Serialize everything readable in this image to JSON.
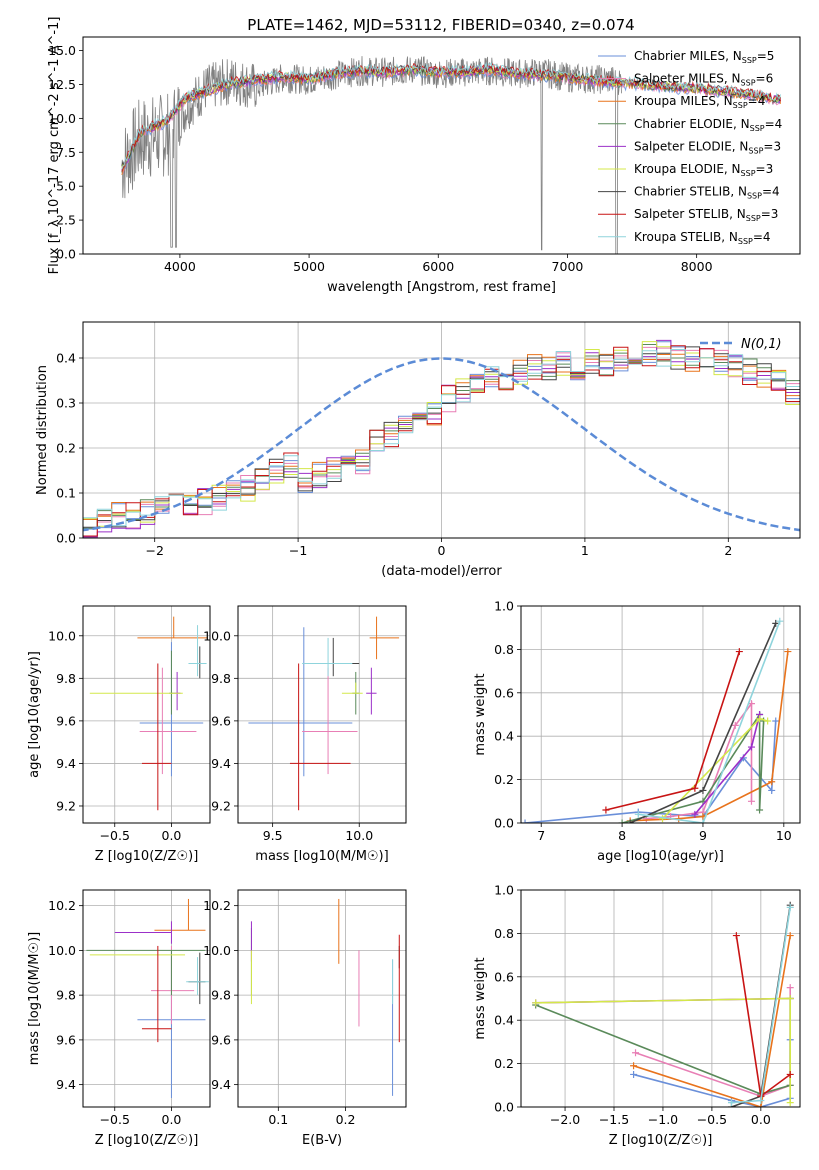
{
  "figure": {
    "title": "PLATE=1462, MJD=53112, FIBERID=0340, z=0.074"
  },
  "models": [
    {
      "name": "Chabrier MILES",
      "nssp": "5",
      "color": "#6a8fd9"
    },
    {
      "name": "Salpeter MILES",
      "nssp": "6",
      "color": "#e87fb5"
    },
    {
      "name": "Kroupa MILES",
      "nssp": "4",
      "color": "#e8731c"
    },
    {
      "name": "Chabrier ELODIE",
      "nssp": "4",
      "color": "#5a8a5a"
    },
    {
      "name": "Salpeter ELODIE",
      "nssp": "3",
      "color": "#9b30c8"
    },
    {
      "name": "Kroupa ELODIE",
      "nssp": "3",
      "color": "#d4e84a"
    },
    {
      "name": "Chabrier STELIB",
      "nssp": "4",
      "color": "#444444"
    },
    {
      "name": "Salpeter STELIB",
      "nssp": "3",
      "color": "#c81414"
    },
    {
      "name": "Kroupa STELIB",
      "nssp": "4",
      "color": "#8fd4dc"
    }
  ],
  "chart_data": [
    {
      "id": "spectrum",
      "type": "line",
      "xlabel": "wavelength [Angstrom, rest frame]",
      "ylabel": "Flux [f_λ 10^-17 erg cm^-2 s^-1 A^-1]",
      "xlim": [
        3250,
        8800
      ],
      "ylim": [
        0,
        16
      ],
      "xticks": [
        4000,
        5000,
        6000,
        7000,
        8000
      ],
      "yticks": [
        0.0,
        2.5,
        5.0,
        7.5,
        10.0,
        12.5,
        15.0
      ],
      "legend_position": "upper right",
      "observed": {
        "color": "#808080",
        "x": [
          3550,
          3700,
          3900,
          4050,
          4200,
          4400,
          4600,
          4800,
          5000,
          5200,
          5400,
          5600,
          5800,
          6000,
          6200,
          6400,
          6600,
          6800,
          7000,
          7200,
          7400
        ],
        "y": [
          6.5,
          8.5,
          8.8,
          10.8,
          12.2,
          12.8,
          12.3,
          13.0,
          12.8,
          13.2,
          13.5,
          13.4,
          13.6,
          13.3,
          13.4,
          13.5,
          13.3,
          13.4,
          13.0,
          12.9,
          12.8
        ]
      },
      "model_curve": {
        "x": [
          3550,
          3700,
          3900,
          4050,
          4200,
          4400,
          4600,
          4800,
          5000,
          5200,
          5400,
          5600,
          5800,
          6000,
          6200,
          6400,
          6600,
          6800,
          7000,
          7200,
          7400,
          7600,
          7800,
          8000,
          8200,
          8400,
          8600
        ],
        "y": [
          6.2,
          9.0,
          9.8,
          11.5,
          12.0,
          12.6,
          12.8,
          13.1,
          12.9,
          13.3,
          13.5,
          13.4,
          13.6,
          13.4,
          13.4,
          13.6,
          13.3,
          13.2,
          13.0,
          12.8,
          12.6,
          12.5,
          12.3,
          12.2,
          12.0,
          11.8,
          11.4
        ]
      }
    },
    {
      "id": "residual-histogram",
      "type": "line",
      "xlabel": "(data-model)/error",
      "ylabel": "Normed distribution",
      "xlim": [
        -2.5,
        2.5
      ],
      "ylim": [
        0,
        0.48
      ],
      "xticks": [
        -2,
        -1,
        0,
        1,
        2
      ],
      "yticks": [
        0.0,
        0.1,
        0.2,
        0.3,
        0.4
      ],
      "grid": true,
      "legend_position": "upper right",
      "gaussian_label": "N(0,1)",
      "bin_width": 0.1,
      "bins_start": -2.5,
      "base_heights": [
        0.03,
        0.04,
        0.05,
        0.05,
        0.06,
        0.07,
        0.07,
        0.08,
        0.08,
        0.09,
        0.1,
        0.11,
        0.13,
        0.15,
        0.16,
        0.13,
        0.14,
        0.15,
        0.16,
        0.17,
        0.21,
        0.23,
        0.25,
        0.27,
        0.28,
        0.31,
        0.33,
        0.35,
        0.36,
        0.35,
        0.37,
        0.38,
        0.38,
        0.39,
        0.38,
        0.39,
        0.39,
        0.4,
        0.4,
        0.41,
        0.41,
        0.4,
        0.4,
        0.4,
        0.39,
        0.38,
        0.37,
        0.36,
        0.35,
        0.32,
        0.33,
        0.31,
        0.29,
        0.27,
        0.26,
        0.24,
        0.21,
        0.19,
        0.18,
        0.17,
        0.16,
        0.14,
        0.13,
        0.12,
        0.1,
        0.09,
        0.08,
        0.07,
        0.07,
        0.06,
        0.06,
        0.05,
        0.05,
        0.04,
        0.04,
        0.05,
        0.04,
        0.03,
        0.04,
        0.03,
        0.04,
        0.04,
        0.03,
        0.03,
        0.03,
        0.02,
        0.02,
        0.02,
        0.02,
        0.02
      ],
      "gaussian": {
        "mean": 0,
        "sigma": 1
      }
    },
    {
      "id": "age-vs-z",
      "type": "scatter",
      "xlabel": "Z [log10(Z/Z☉)]",
      "ylabel": "age  [log10(age/yr)]",
      "xlim": [
        -0.78,
        0.34
      ],
      "ylim": [
        9.12,
        10.14
      ],
      "xticks": [
        -0.5,
        0.0
      ],
      "yticks": [
        9.2,
        9.4,
        9.6,
        9.8,
        10.0
      ],
      "grid": true,
      "points": [
        {
          "x": 0.0,
          "y": 9.59,
          "xerr": [
            0.28,
            0.28
          ],
          "yerr": [
            0.25,
            0.38
          ],
          "model": 0
        },
        {
          "x": -0.08,
          "y": 9.55,
          "xerr": [
            0.2,
            0.3
          ],
          "yerr": [
            0.2,
            0.3
          ],
          "model": 1
        },
        {
          "x": 0.02,
          "y": 9.99,
          "xerr": [
            0.32,
            0.3
          ],
          "yerr": [
            0.0,
            0.1
          ],
          "model": 2
        },
        {
          "x": 0.0,
          "y": 9.73,
          "xerr": [
            0.02,
            0.02
          ],
          "yerr": [
            0.1,
            0.2
          ],
          "model": 3
        },
        {
          "x": 0.05,
          "y": 9.73,
          "xerr": [
            0.03,
            0.03
          ],
          "yerr": [
            0.08,
            0.1
          ],
          "model": 4
        },
        {
          "x": -0.3,
          "y": 9.73,
          "xerr": [
            0.42,
            0.4
          ],
          "yerr": [
            0.0,
            0.0
          ],
          "model": 5
        },
        {
          "x": 0.25,
          "y": 9.87,
          "xerr": [
            0.01,
            0.01
          ],
          "yerr": [
            0.07,
            0.08
          ],
          "model": 6
        },
        {
          "x": -0.12,
          "y": 9.4,
          "xerr": [
            0.14,
            0.12
          ],
          "yerr": [
            0.22,
            0.47
          ],
          "model": 7
        },
        {
          "x": 0.23,
          "y": 9.87,
          "xerr": [
            0.08,
            0.08
          ],
          "yerr": [
            0.06,
            0.18
          ],
          "model": 8
        }
      ]
    },
    {
      "id": "age-vs-mass",
      "type": "scatter",
      "xlabel": "mass [log10(M/M☉)]",
      "ylabel": "",
      "xlim": [
        9.3,
        10.27
      ],
      "ylim": [
        9.12,
        10.14
      ],
      "xticks": [
        9.5,
        10.0
      ],
      "yticks": [
        9.2,
        9.4,
        9.6,
        9.8,
        10.0
      ],
      "grid": true,
      "points": [
        {
          "x": 9.68,
          "y": 9.59,
          "xerr": [
            0.32,
            0.28
          ],
          "yerr": [
            0.25,
            0.45
          ],
          "model": 0
        },
        {
          "x": 9.82,
          "y": 9.55,
          "xerr": [
            0.15,
            0.17
          ],
          "yerr": [
            0.2,
            0.3
          ],
          "model": 1
        },
        {
          "x": 10.1,
          "y": 9.99,
          "xerr": [
            0.04,
            0.13
          ],
          "yerr": [
            0.1,
            0.1
          ],
          "model": 2
        },
        {
          "x": 9.98,
          "y": 9.73,
          "xerr": [
            0.02,
            0.02
          ],
          "yerr": [
            0.1,
            0.1
          ],
          "model": 3
        },
        {
          "x": 10.07,
          "y": 9.73,
          "xerr": [
            0.03,
            0.03
          ],
          "yerr": [
            0.1,
            0.12
          ],
          "model": 4
        },
        {
          "x": 9.98,
          "y": 9.73,
          "xerr": [
            0.08,
            0.04
          ],
          "yerr": [
            0.0,
            0.05
          ],
          "model": 5
        },
        {
          "x": 9.85,
          "y": 9.87,
          "xerr": [
            0.15,
            0.15
          ],
          "yerr": [
            0.06,
            0.12
          ],
          "model": 6
        },
        {
          "x": 9.65,
          "y": 9.4,
          "xerr": [
            0.05,
            0.3
          ],
          "yerr": [
            0.22,
            0.47
          ],
          "model": 7
        },
        {
          "x": 9.82,
          "y": 9.87,
          "xerr": [
            0.15,
            0.14
          ],
          "yerr": [
            0.06,
            0.12
          ],
          "model": 8
        }
      ]
    },
    {
      "id": "weight-vs-age",
      "type": "line",
      "xlabel": "age  [log10(age/yr)]",
      "ylabel": "mass weight",
      "xlim": [
        6.75,
        10.2
      ],
      "ylim": [
        0,
        1.0
      ],
      "xticks": [
        7,
        8,
        9,
        10
      ],
      "yticks": [
        0.0,
        0.2,
        0.4,
        0.6,
        0.8,
        1.0
      ],
      "grid": true,
      "series": [
        {
          "model": 0,
          "x": [
            6.8,
            8.2,
            9.0,
            9.5,
            9.85,
            9.9
          ],
          "y": [
            0.0,
            0.05,
            0.03,
            0.3,
            0.15,
            0.47
          ]
        },
        {
          "model": 1,
          "x": [
            8.3,
            8.6,
            9.0,
            9.4,
            9.6,
            9.6
          ],
          "y": [
            0.02,
            0.03,
            0.05,
            0.45,
            0.55,
            0.1
          ]
        },
        {
          "model": 2,
          "x": [
            8.1,
            8.7,
            9.0,
            9.85,
            10.05
          ],
          "y": [
            0.01,
            0.02,
            0.03,
            0.19,
            0.79
          ]
        },
        {
          "model": 3,
          "x": [
            8.0,
            9.0,
            9.7,
            9.7,
            9.75
          ],
          "y": [
            0.0,
            0.1,
            0.5,
            0.06,
            0.47
          ]
        },
        {
          "model": 4,
          "x": [
            8.9,
            9.6,
            9.7
          ],
          "y": [
            0.04,
            0.35,
            0.5
          ]
        },
        {
          "model": 5,
          "x": [
            8.5,
            9.7,
            9.8
          ],
          "y": [
            0.02,
            0.48,
            0.47
          ]
        },
        {
          "model": 6,
          "x": [
            8.1,
            9.0,
            9.9
          ],
          "y": [
            0.0,
            0.15,
            0.92
          ]
        },
        {
          "model": 7,
          "x": [
            7.8,
            8.9,
            9.45
          ],
          "y": [
            0.06,
            0.16,
            0.79
          ]
        },
        {
          "model": 8,
          "x": [
            8.2,
            9.0,
            9.95
          ],
          "y": [
            0.04,
            0.0,
            0.93
          ]
        }
      ]
    },
    {
      "id": "mass-vs-z",
      "type": "scatter",
      "xlabel": "Z [log10(Z/Z☉)]",
      "ylabel": "mass [log10(M/M☉)]",
      "xlim": [
        -0.78,
        0.34
      ],
      "ylim": [
        9.3,
        10.27
      ],
      "xticks": [
        -0.5,
        0.0
      ],
      "yticks": [
        9.4,
        9.6,
        9.8,
        10.0,
        10.2
      ],
      "grid": true,
      "points": [
        {
          "x": 0.0,
          "y": 9.69,
          "xerr": [
            0.3,
            0.3
          ],
          "yerr": [
            0.35,
            0.3
          ],
          "model": 0
        },
        {
          "x": 0.0,
          "y": 9.82,
          "xerr": [
            0.18,
            0.2
          ],
          "yerr": [
            0.15,
            0.2
          ],
          "model": 1
        },
        {
          "x": 0.15,
          "y": 10.09,
          "xerr": [
            0.3,
            0.15
          ],
          "yerr": [
            0.0,
            0.14
          ],
          "model": 2
        },
        {
          "x": 0.0,
          "y": 10.0,
          "xerr": [
            0.75,
            0.3
          ],
          "yerr": [
            0.2,
            0.0
          ],
          "model": 3
        },
        {
          "x": 0.0,
          "y": 10.08,
          "xerr": [
            0.5,
            0.0
          ],
          "yerr": [
            0.05,
            0.05
          ],
          "model": 4
        },
        {
          "x": -0.3,
          "y": 9.98,
          "xerr": [
            0.42,
            0.42
          ],
          "yerr": [
            0.0,
            0.0
          ],
          "model": 5
        },
        {
          "x": 0.25,
          "y": 9.86,
          "xerr": [
            0.1,
            0.05
          ],
          "yerr": [
            0.1,
            0.13
          ],
          "model": 6
        },
        {
          "x": -0.12,
          "y": 9.65,
          "xerr": [
            0.14,
            0.12
          ],
          "yerr": [
            0.06,
            0.37
          ],
          "model": 7
        },
        {
          "x": 0.23,
          "y": 9.86,
          "xerr": [
            0.1,
            0.1
          ],
          "yerr": [
            0.06,
            0.11
          ],
          "model": 8
        }
      ]
    },
    {
      "id": "mass-vs-ebv",
      "type": "scatter",
      "xlabel": "E(B-V)",
      "ylabel": "",
      "xlim": [
        0.04,
        0.29
      ],
      "ylim": [
        9.3,
        10.27
      ],
      "xticks": [
        0.1,
        0.2
      ],
      "yticks": [
        9.4,
        9.6,
        9.8,
        10.0,
        10.2
      ],
      "grid": true,
      "points": [
        {
          "x": 0.27,
          "y": 9.7,
          "xerr": [
            0,
            0
          ],
          "yerr": [
            0.35,
            0.26
          ],
          "model": 0
        },
        {
          "x": 0.22,
          "y": 9.82,
          "xerr": [
            0,
            0
          ],
          "yerr": [
            0.16,
            0.18
          ],
          "model": 1
        },
        {
          "x": 0.19,
          "y": 10.09,
          "xerr": [
            0,
            0
          ],
          "yerr": [
            0.15,
            0.14
          ],
          "model": 2
        },
        {
          "x": 0.06,
          "y": 10.0,
          "xerr": [
            0,
            0
          ],
          "yerr": [
            0.2,
            0.1
          ],
          "model": 3
        },
        {
          "x": 0.06,
          "y": 10.05,
          "xerr": [
            0,
            0
          ],
          "yerr": [
            0.1,
            0.08
          ],
          "model": 4
        },
        {
          "x": 0.06,
          "y": 9.9,
          "xerr": [
            0,
            0
          ],
          "yerr": [
            0.14,
            0.1
          ],
          "model": 5
        },
        {
          "x": 0.28,
          "y": 9.97,
          "xerr": [
            0,
            0
          ],
          "yerr": [
            0.05,
            0.05
          ],
          "model": 6
        },
        {
          "x": 0.28,
          "y": 9.85,
          "xerr": [
            0,
            0
          ],
          "yerr": [
            0.26,
            0.22
          ],
          "model": 7
        },
        {
          "x": 0.27,
          "y": 9.86,
          "xerr": [
            0,
            0
          ],
          "yerr": [
            0.1,
            0.1
          ],
          "model": 8
        }
      ]
    },
    {
      "id": "weight-vs-z",
      "type": "line",
      "xlabel": "Z [log10(Z/Z☉)]",
      "ylabel": "mass weight",
      "xlim": [
        -2.45,
        0.4
      ],
      "ylim": [
        0,
        1.0
      ],
      "xticks": [
        -2.0,
        -1.5,
        -1.0,
        -0.5,
        0.0
      ],
      "yticks": [
        0.0,
        0.2,
        0.4,
        0.6,
        0.8,
        1.0
      ],
      "grid": true,
      "series": [
        {
          "model": 0,
          "x": [
            -1.3,
            -0.3,
            0.0,
            0.3,
            0.3
          ],
          "y": [
            0.15,
            0.03,
            0.0,
            0.04,
            0.31
          ]
        },
        {
          "model": 1,
          "x": [
            -1.28,
            0.0,
            0.3,
            0.3
          ],
          "y": [
            0.25,
            0.05,
            0.1,
            0.55
          ]
        },
        {
          "model": 2,
          "x": [
            -1.3,
            0.0,
            0.3
          ],
          "y": [
            0.19,
            0.0,
            0.79
          ]
        },
        {
          "model": 3,
          "x": [
            -2.3,
            0.0,
            0.3,
            0.3
          ],
          "y": [
            0.47,
            0.06,
            0.1,
            0.5
          ]
        },
        {
          "model": 4,
          "x": [
            -2.3,
            0.3
          ],
          "y": [
            0.48,
            0.5
          ]
        },
        {
          "model": 5,
          "x": [
            -2.3,
            0.3,
            0.3
          ],
          "y": [
            0.48,
            0.5,
            0.02
          ]
        },
        {
          "model": 6,
          "x": [
            -0.3,
            0.0,
            0.3
          ],
          "y": [
            0.0,
            0.05,
            0.93
          ]
        },
        {
          "model": 7,
          "x": [
            -0.25,
            0.0,
            0.3
          ],
          "y": [
            0.79,
            0.05,
            0.15
          ]
        },
        {
          "model": 8,
          "x": [
            -0.3,
            0.0,
            0.3
          ],
          "y": [
            0.02,
            0.03,
            0.92
          ]
        }
      ]
    }
  ]
}
